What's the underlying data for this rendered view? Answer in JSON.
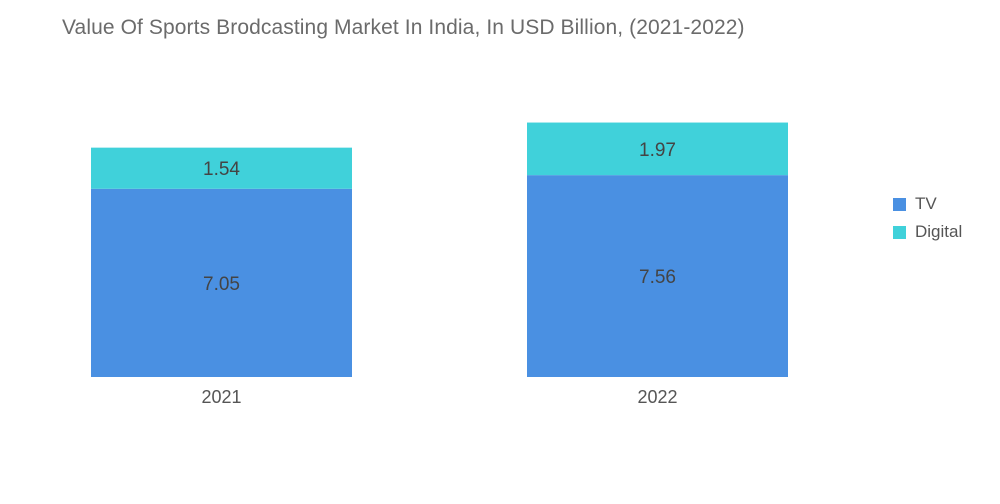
{
  "chart_data": {
    "type": "bar",
    "stacked": true,
    "title": "Value Of Sports Brodcasting Market In India, In USD Billion, (2021-2022)",
    "categories": [
      "2021",
      "2022"
    ],
    "series": [
      {
        "name": "TV",
        "values": [
          7.05,
          7.56
        ],
        "value_labels": [
          "7.05",
          "7.56"
        ],
        "color": "#4a90e2"
      },
      {
        "name": "Digital",
        "values": [
          1.54,
          1.97
        ],
        "value_labels": [
          "1.54",
          "1.97"
        ],
        "color": "#40d1da"
      }
    ],
    "xlabel": "",
    "ylabel": "",
    "grid": false,
    "legend_position": "right"
  }
}
